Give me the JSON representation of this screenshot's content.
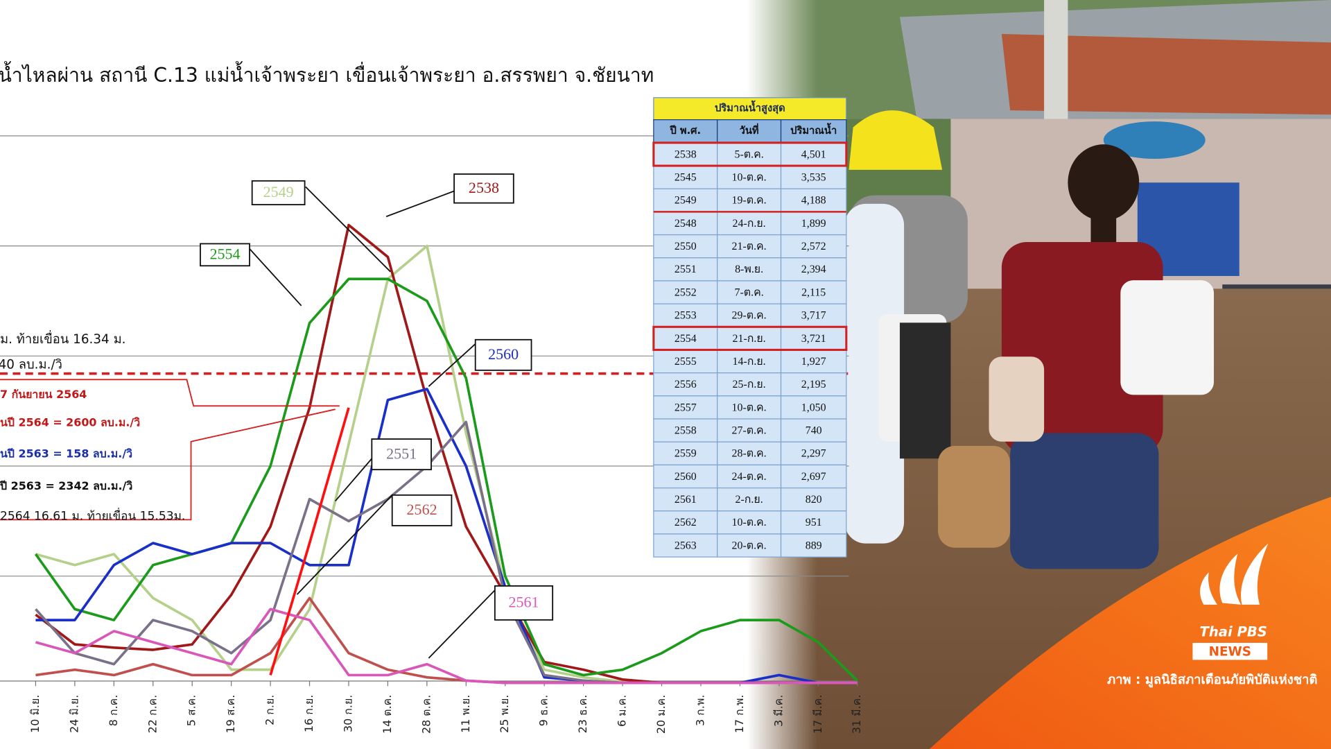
{
  "chart_data": {
    "type": "line",
    "title": "น้ำไหลผ่าน สถานี C.13 แม่น้ำเจ้าพระยา เขื่อนเจ้าพระยา อ.สรรพยา จ.ชัยนาท",
    "categories": [
      "10 มิ.ย.",
      "24 มิ.ย.",
      "8 ก.ค.",
      "22 ก.ค.",
      "5 ส.ค.",
      "19 ส.ค.",
      "2 ก.ย.",
      "16 ก.ย.",
      "30 ก.ย.",
      "14 ต.ค.",
      "28 ต.ค.",
      "11 พ.ย.",
      "25 พ.ย.",
      "9 ธ.ค.",
      "23 ธ.ค.",
      "6 ม.ค.",
      "20 ม.ค.",
      "3 ก.พ.",
      "17 ก.พ.",
      "3 มี.ค.",
      "17 มี.ค.",
      "31 มี.ค."
    ],
    "ylim": [
      0,
      5000
    ],
    "yticks": [
      1000,
      2000,
      3000,
      4000,
      5000
    ],
    "grid": true,
    "threshold": 2840,
    "threshold_color": "#d42020",
    "series": [
      {
        "name": "2549",
        "color": "#b5d08a",
        "values": [
          1200,
          1100,
          1200,
          800,
          600,
          150,
          150,
          700,
          2200,
          3700,
          4000,
          2300,
          900,
          150,
          80,
          40,
          30,
          30,
          30,
          30,
          30,
          30
        ]
      },
      {
        "name": "2538",
        "color": "#a01818",
        "values": [
          650,
          380,
          350,
          330,
          380,
          830,
          1450,
          2530,
          4190,
          3900,
          2600,
          1450,
          830,
          220,
          150,
          60,
          30,
          30,
          30,
          30,
          30,
          30
        ]
      },
      {
        "name": "2554",
        "color": "#1c9a1c",
        "values": [
          1200,
          700,
          600,
          1100,
          1200,
          1300,
          2000,
          3300,
          3700,
          3700,
          3500,
          2800,
          1000,
          200,
          100,
          150,
          300,
          500,
          600,
          600,
          400,
          50
        ]
      },
      {
        "name": "2560",
        "color": "#1a2fc8",
        "values": [
          600,
          600,
          1100,
          1300,
          1200,
          1300,
          1300,
          1100,
          1100,
          2600,
          2700,
          2000,
          900,
          80,
          50,
          30,
          30,
          30,
          30,
          100,
          30,
          30
        ]
      },
      {
        "name": "2551",
        "color": "#7a7088",
        "values": [
          700,
          300,
          200,
          600,
          500,
          300,
          600,
          1700,
          1500,
          1700,
          2000,
          2400,
          800,
          100,
          50,
          30,
          30,
          30,
          30,
          30,
          30,
          30
        ]
      },
      {
        "name": "2562",
        "color": "#c0504d",
        "values": [
          100,
          150,
          100,
          200,
          100,
          100,
          300,
          800,
          300,
          150,
          80,
          50,
          30,
          30,
          30,
          30,
          30,
          30,
          30,
          30,
          30,
          30
        ]
      },
      {
        "name": "2561",
        "color": "#d957b8",
        "values": [
          400,
          300,
          500,
          400,
          300,
          200,
          700,
          600,
          100,
          100,
          200,
          50,
          30,
          30,
          30,
          30,
          30,
          30,
          30,
          30,
          30,
          30
        ]
      },
      {
        "name": "2564",
        "color": "#ff1010",
        "values": [
          null,
          null,
          null,
          null,
          null,
          null,
          100,
          1300,
          2530,
          null,
          null,
          null,
          null,
          null,
          null,
          null,
          null,
          null,
          null,
          null,
          null,
          null
        ]
      }
    ],
    "annotations": [
      "ม. ท้ายเขื่อน 16.34 ม.",
      "40 ลบ.ม./วิ",
      "7 กันยายน 2564",
      "นปี 2564 = 2600 ลบ.ม./วิ",
      "นปี 2563 = 158 ลบ.ม./วิ",
      "ปี 2563 = 2342 ลบ.ม./วิ",
      "2564 16.61 ม. ท้ายเขื่อน 15.53ม."
    ]
  },
  "table": {
    "title": "ปริมาณน้ำสูงสุด",
    "columns": [
      "ปี พ.ศ.",
      "วันที่",
      "ปริมาณน้ำ"
    ],
    "rows": [
      [
        "2538",
        "5-ต.ค.",
        "4,501"
      ],
      [
        "2545",
        "10-ต.ค.",
        "3,535"
      ],
      [
        "2549",
        "19-ต.ค.",
        "4,188"
      ],
      [
        "2548",
        "24-ก.ย.",
        "1,899"
      ],
      [
        "2550",
        "21-ต.ค.",
        "2,572"
      ],
      [
        "2551",
        "8-พ.ย.",
        "2,394"
      ],
      [
        "2552",
        "7-ต.ค.",
        "2,115"
      ],
      [
        "2553",
        "29-ต.ค.",
        "3,717"
      ],
      [
        "2554",
        "21-ก.ย.",
        "3,721"
      ],
      [
        "2555",
        "14-ก.ย.",
        "1,927"
      ],
      [
        "2556",
        "25-ก.ย.",
        "2,195"
      ],
      [
        "2557",
        "10-ต.ค.",
        "1,050"
      ],
      [
        "2558",
        "27-ต.ค.",
        "740"
      ],
      [
        "2559",
        "28-ต.ค.",
        "2,297"
      ],
      [
        "2560",
        "24-ต.ค.",
        "2,697"
      ],
      [
        "2561",
        "2-ก.ย.",
        "820"
      ],
      [
        "2562",
        "10-ต.ค.",
        "951"
      ],
      [
        "2563",
        "20-ต.ค.",
        "889"
      ]
    ]
  },
  "logo": {
    "brand": "Thai PBS",
    "section": "NEWS"
  },
  "credit": "ภาพ :  มูลนิธิสภาเตือนภัยพิบัติแห่งชาติ"
}
